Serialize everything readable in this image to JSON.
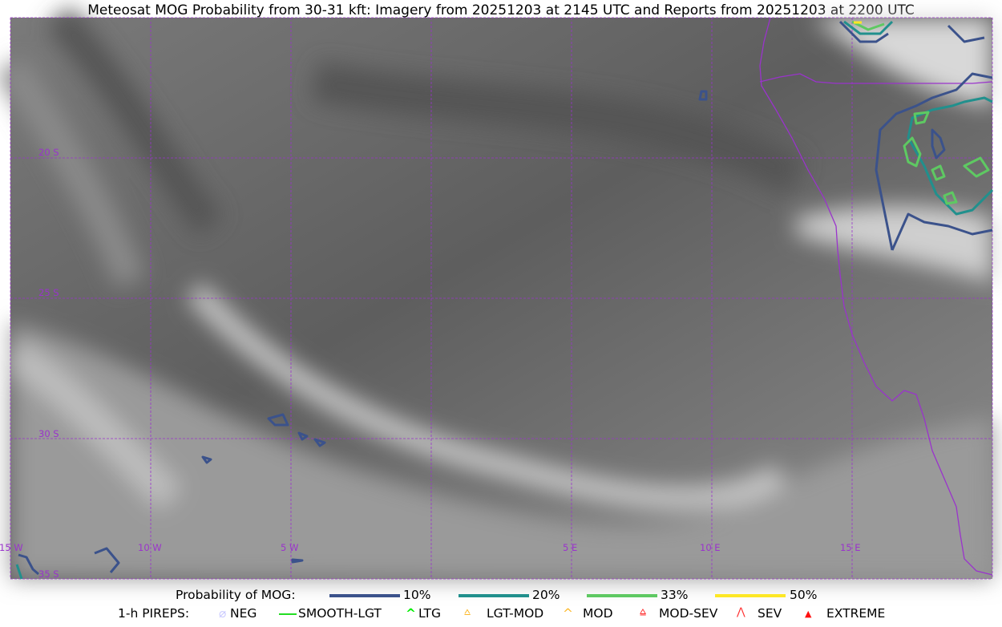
{
  "title": "Meteosat MOG Probability from 30-31 kft: Imagery from 20251203 at 2145 UTC and Reports from 20251203 at 2200 UTC",
  "map": {
    "longitude_labels": [
      "15 W",
      "10 W",
      "5 W",
      "5 E",
      "10 E",
      "15 E"
    ],
    "latitude_labels": [
      "20 S",
      "25 S",
      "30 S",
      "35 S"
    ],
    "longitudes": [
      -15,
      -10,
      -5,
      0,
      5,
      10,
      15,
      20
    ],
    "latitudes": [
      -15,
      -20,
      -25,
      -30,
      -35
    ],
    "gridline_color": "#9a33cc",
    "coastline_color": "#9a33cc"
  },
  "legend": {
    "probability_label": "Probability of MOG:",
    "levels": [
      {
        "label": "10%",
        "color": "#3b528b"
      },
      {
        "label": "20%",
        "color": "#21908d"
      },
      {
        "label": "33%",
        "color": "#5ec962"
      },
      {
        "label": "50%",
        "color": "#fde725"
      }
    ],
    "pireps_label": "1-h PIREPS:",
    "pireps": [
      {
        "label": "NEG",
        "color": "#c8c8ff",
        "icon": "neg-circle-icon"
      },
      {
        "label": "SMOOTH-LGT",
        "color": "#22dd22",
        "icon": "line-icon"
      },
      {
        "label": "LTG",
        "color": "#00ee00",
        "icon": "caret-icon"
      },
      {
        "label": "LGT-MOD",
        "color": "#fbb829",
        "icon": "caret-bar-icon"
      },
      {
        "label": "MOD",
        "color": "#fbb829",
        "icon": "caret-icon"
      },
      {
        "label": "MOD-SEV",
        "color": "#ff3030",
        "icon": "double-caret-bar-icon"
      },
      {
        "label": "SEV",
        "color": "#ff3030",
        "icon": "double-caret-icon"
      },
      {
        "label": "EXTREME",
        "color": "#ff1010",
        "icon": "filled-triangle-icon"
      }
    ]
  }
}
